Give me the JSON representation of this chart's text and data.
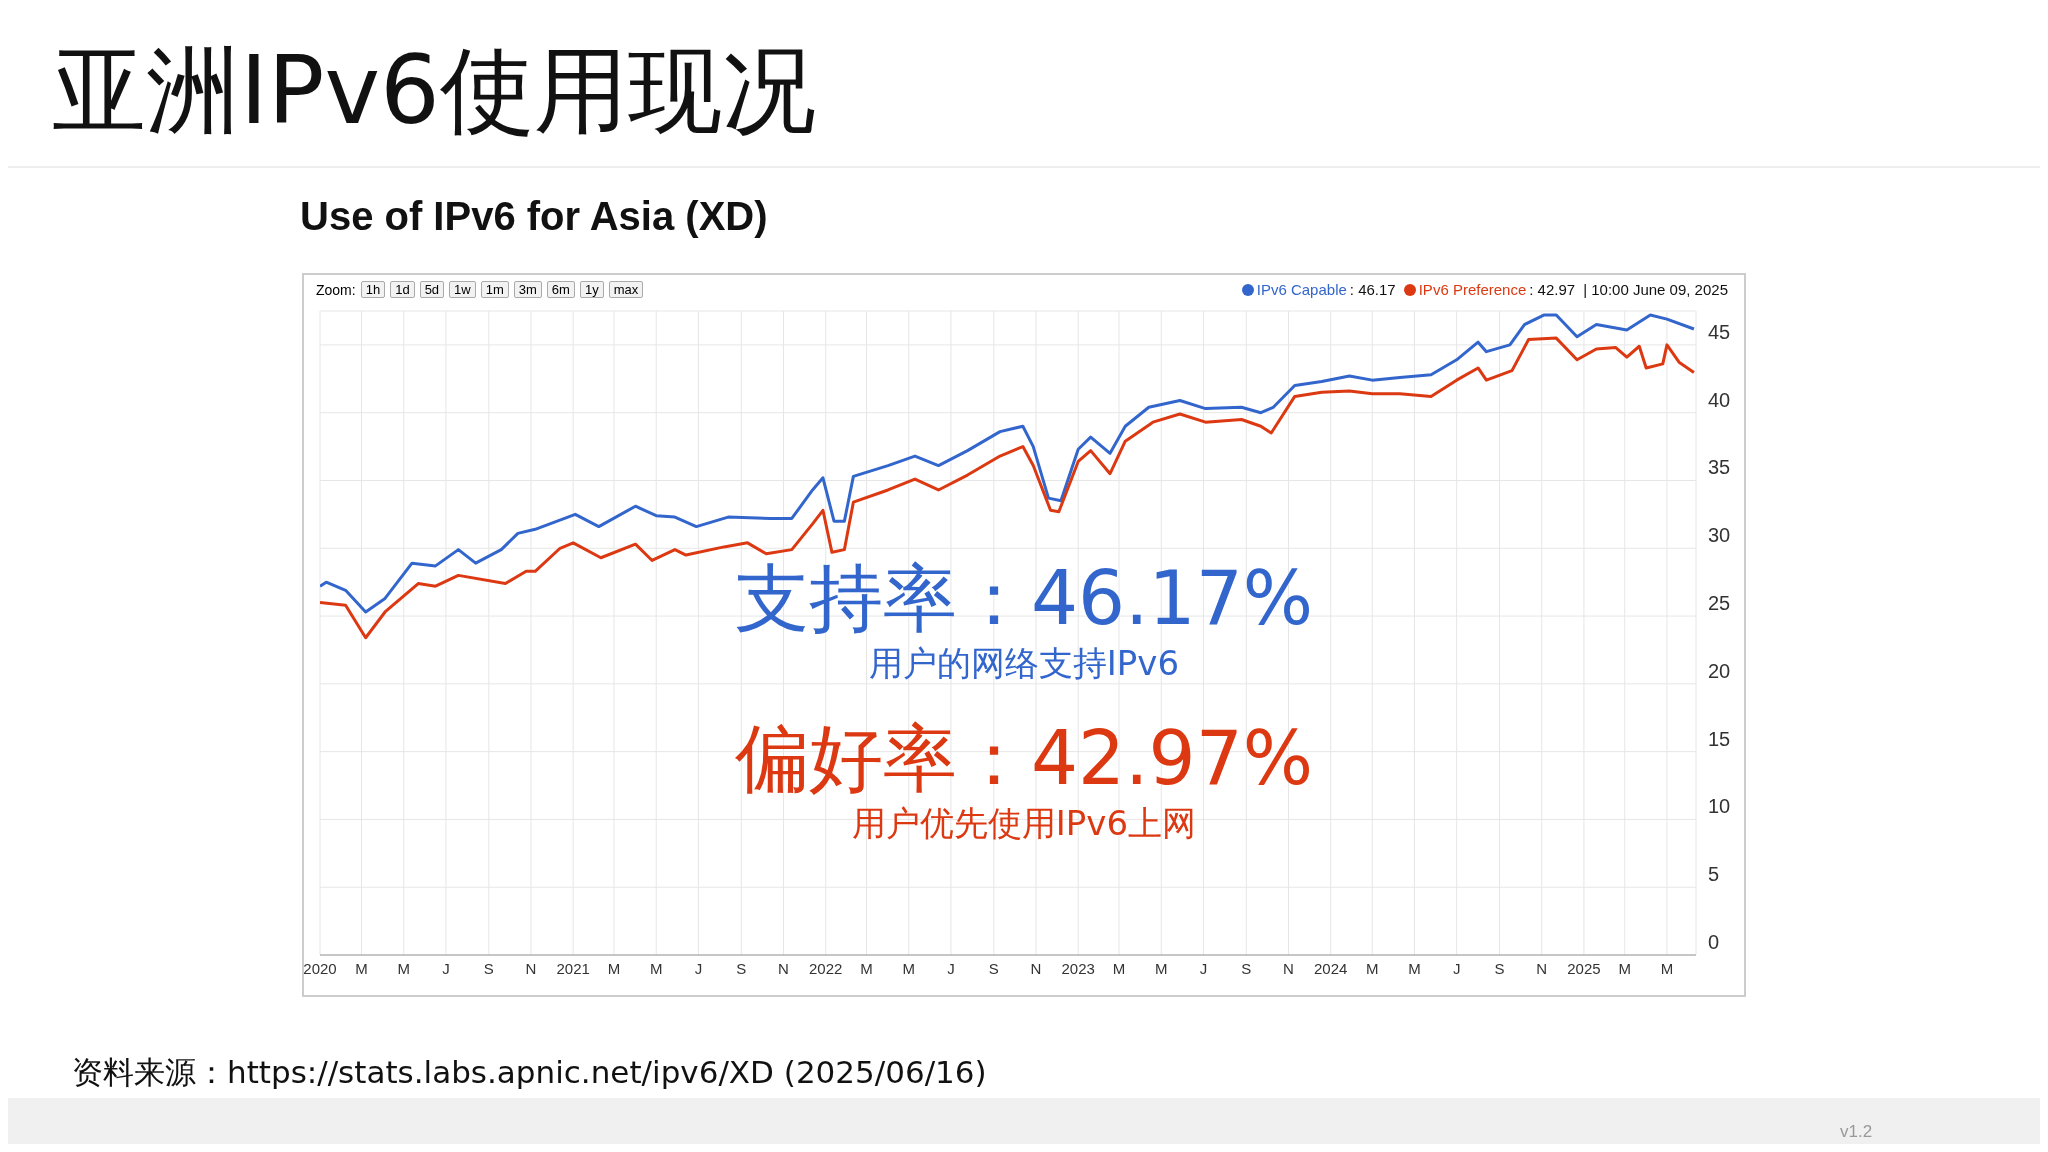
{
  "chart_data": {
    "type": "line",
    "title": "亚洲IPv6使用现况",
    "subtitle": "Use of IPv6 for Asia (XD)",
    "annotations": [
      "支持率：46.17%",
      "用户的网络支持IPv6",
      "偏好率：42.97%",
      "用户优先使用IPv6上网",
      "资料来源：https://stats.labs.apnic.net/ipv6/XD (2025/06/16)",
      "v1.2",
      "Zoom:",
      "1h",
      "1d",
      "5d",
      "1w",
      "1m",
      "3m",
      "6m",
      "1y",
      "max",
      "| 10:00 June 09, 2025",
      ": 46.17",
      ": 42.97"
    ],
    "xlim": [
      "2020-01-01",
      "2025-06-12"
    ],
    "xticks": [
      {
        "value": "2020-01",
        "label": "2020"
      },
      {
        "value": "2020-03",
        "label": "M"
      },
      {
        "value": "2020-05",
        "label": "M"
      },
      {
        "value": "2020-07",
        "label": "J"
      },
      {
        "value": "2020-09",
        "label": "S"
      },
      {
        "value": "2020-11",
        "label": "N"
      },
      {
        "value": "2021-01",
        "label": "2021"
      },
      {
        "value": "2021-03",
        "label": "M"
      },
      {
        "value": "2021-05",
        "label": "M"
      },
      {
        "value": "2021-07",
        "label": "J"
      },
      {
        "value": "2021-09",
        "label": "S"
      },
      {
        "value": "2021-11",
        "label": "N"
      },
      {
        "value": "2022-01",
        "label": "2022"
      },
      {
        "value": "2022-03",
        "label": "M"
      },
      {
        "value": "2022-05",
        "label": "M"
      },
      {
        "value": "2022-07",
        "label": "J"
      },
      {
        "value": "2022-09",
        "label": "S"
      },
      {
        "value": "2022-11",
        "label": "N"
      },
      {
        "value": "2023-01",
        "label": "2023"
      },
      {
        "value": "2023-03",
        "label": "M"
      },
      {
        "value": "2023-05",
        "label": "M"
      },
      {
        "value": "2023-07",
        "label": "J"
      },
      {
        "value": "2023-09",
        "label": "S"
      },
      {
        "value": "2023-11",
        "label": "N"
      },
      {
        "value": "2024-01",
        "label": "2024"
      },
      {
        "value": "2024-03",
        "label": "M"
      },
      {
        "value": "2024-05",
        "label": "M"
      },
      {
        "value": "2024-07",
        "label": "J"
      },
      {
        "value": "2024-09",
        "label": "S"
      },
      {
        "value": "2024-11",
        "label": "N"
      },
      {
        "value": "2025-01",
        "label": "2025"
      },
      {
        "value": "2025-03",
        "label": "M"
      },
      {
        "value": "2025-05",
        "label": "M"
      }
    ],
    "ylim": [
      0,
      47.5
    ],
    "yticks": [
      0,
      5,
      10,
      15,
      20,
      25,
      30,
      35,
      40,
      45
    ],
    "grid": true,
    "legend": "top right",
    "marker": "none",
    "line_style": "solid",
    "series": [
      {
        "name": "IPv6 Capable",
        "color": "#3366cc",
        "x": [
          "2020-01-01",
          "2020-01-10",
          "2020-02-07",
          "2020-03-07",
          "2020-04-04",
          "2020-05-13",
          "2020-06-16",
          "2020-07-19",
          "2020-08-13",
          "2020-09-19",
          "2020-10-13",
          "2020-11-07",
          "2021-01-04",
          "2021-02-07",
          "2021-04-01",
          "2021-05-01",
          "2021-05-28",
          "2021-06-28",
          "2021-08-13",
          "2021-10-13",
          "2021-11-13",
          "2021-12-13",
          "2021-12-28",
          "2022-01-13",
          "2022-01-28",
          "2022-02-10",
          "2022-04-01",
          "2022-05-10",
          "2022-06-13",
          "2022-07-25",
          "2022-09-10",
          "2022-10-13",
          "2022-10-28",
          "2022-11-19",
          "2022-12-07",
          "2023-01-01",
          "2023-01-19",
          "2023-02-16",
          "2023-03-10",
          "2023-04-13",
          "2023-05-28",
          "2023-07-04",
          "2023-08-25",
          "2023-09-22",
          "2023-10-10",
          "2023-11-10",
          "2023-12-19",
          "2024-01-28",
          "2024-03-01",
          "2024-04-10",
          "2024-05-25",
          "2024-07-01",
          "2024-08-01",
          "2024-08-13",
          "2024-09-16",
          "2024-10-07",
          "2024-11-04",
          "2024-11-22",
          "2024-12-22",
          "2025-01-19",
          "2025-03-04",
          "2025-04-07",
          "2025-05-01",
          "2025-06-09"
        ],
        "values": [
          27.2,
          27.5,
          26.9,
          25.3,
          26.3,
          28.9,
          28.7,
          29.9,
          28.9,
          29.9,
          31.1,
          31.4,
          32.5,
          31.6,
          33.1,
          32.4,
          32.3,
          31.6,
          32.3,
          32.2,
          32.2,
          34.3,
          35.2,
          32.0,
          32.0,
          35.3,
          36.1,
          36.8,
          36.1,
          37.2,
          38.6,
          39.0,
          37.5,
          33.7,
          33.5,
          37.3,
          38.2,
          37.0,
          39.0,
          40.4,
          40.9,
          40.3,
          40.4,
          40.0,
          40.4,
          42.0,
          42.3,
          42.7,
          42.4,
          42.6,
          42.8,
          43.9,
          45.2,
          44.5,
          45.0,
          46.5,
          47.2,
          47.2,
          45.6,
          46.5,
          46.1,
          47.2,
          46.9,
          46.17
        ]
      },
      {
        "name": "IPv6 Preference",
        "color": "#dc3912",
        "x": [
          "2020-01-01",
          "2020-02-07",
          "2020-03-07",
          "2020-04-04",
          "2020-05-22",
          "2020-06-16",
          "2020-07-19",
          "2020-09-25",
          "2020-10-25",
          "2020-11-07",
          "2020-12-13",
          "2021-01-01",
          "2021-02-10",
          "2021-04-01",
          "2021-04-25",
          "2021-05-28",
          "2021-06-13",
          "2021-08-07",
          "2021-09-10",
          "2021-10-07",
          "2021-11-13",
          "2021-12-13",
          "2021-12-28",
          "2022-01-10",
          "2022-01-28",
          "2022-02-10",
          "2022-04-01",
          "2022-05-10",
          "2022-06-13",
          "2022-07-25",
          "2022-09-10",
          "2022-10-13",
          "2022-10-28",
          "2022-11-22",
          "2022-12-04",
          "2023-01-01",
          "2023-01-19",
          "2023-02-16",
          "2023-03-10",
          "2023-04-19",
          "2023-05-28",
          "2023-07-04",
          "2023-08-25",
          "2023-09-22",
          "2023-10-07",
          "2023-11-10",
          "2023-12-19",
          "2024-01-28",
          "2024-03-01",
          "2024-04-10",
          "2024-05-25",
          "2024-07-01",
          "2024-08-01",
          "2024-08-13",
          "2024-09-19",
          "2024-10-13",
          "2024-11-22",
          "2024-12-22",
          "2025-01-19",
          "2025-02-16",
          "2025-03-04",
          "2025-03-22",
          "2025-04-01",
          "2025-04-25",
          "2025-05-01",
          "2025-05-19",
          "2025-06-09"
        ],
        "values": [
          26.0,
          25.8,
          23.4,
          25.3,
          27.4,
          27.2,
          28.0,
          27.4,
          28.3,
          28.3,
          30.0,
          30.4,
          29.3,
          30.3,
          29.1,
          29.9,
          29.5,
          30.1,
          30.4,
          29.6,
          29.9,
          31.8,
          32.8,
          29.7,
          29.9,
          33.4,
          34.3,
          35.1,
          34.3,
          35.4,
          36.8,
          37.5,
          36.1,
          32.8,
          32.7,
          36.4,
          37.2,
          35.5,
          37.9,
          39.3,
          39.9,
          39.3,
          39.5,
          39.0,
          38.5,
          41.2,
          41.5,
          41.6,
          41.4,
          41.4,
          41.2,
          42.4,
          43.3,
          42.4,
          43.1,
          45.4,
          45.5,
          43.9,
          44.7,
          44.8,
          44.1,
          44.9,
          43.3,
          43.6,
          45.0,
          43.7,
          42.97
        ]
      }
    ]
  }
}
